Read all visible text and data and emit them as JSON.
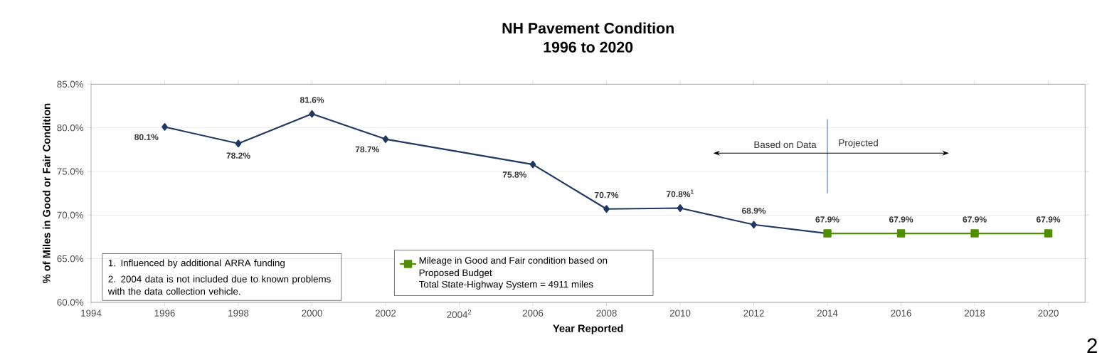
{
  "chart_data": {
    "type": "line",
    "title": "NH Pavement Condition\n1996 to 2020",
    "xlabel": "Year Reported",
    "ylabel": "% of Miles in Good or Fair Condition",
    "xlim": [
      1994,
      2021
    ],
    "ylim": [
      60,
      85
    ],
    "xticks": [
      1994,
      1996,
      1998,
      2000,
      2002,
      {
        "value": 2004,
        "label": "2004$^{2}$"
      },
      2006,
      2008,
      2010,
      2012,
      2014,
      2016,
      2018,
      2020
    ],
    "yticks": [
      {
        "value": 60,
        "label": "60.0%"
      },
      {
        "value": 65,
        "label": "65.0%"
      },
      {
        "value": 70,
        "label": "70.0%"
      },
      {
        "value": 75,
        "label": "75.0%"
      },
      {
        "value": 80,
        "label": "80.0%"
      },
      {
        "value": 85,
        "label": "85.0%"
      }
    ],
    "grid": "y",
    "legend": "bottom",
    "series": [
      {
        "color": "#1f3864",
        "marker": "diamond",
        "x": [
          1996,
          1998,
          2000,
          2002,
          2006,
          2008,
          2010,
          2012,
          2014
        ],
        "values": [
          80.1,
          78.2,
          81.6,
          78.7,
          75.8,
          70.7,
          70.8,
          68.9,
          67.9
        ],
        "value_labels": [
          "80.1%",
          "78.2%",
          "81.6%",
          "78.7%",
          "75.8%",
          "70.7%",
          "70.8%$^{1}$",
          "68.9%",
          "67.9%"
        ]
      },
      {
        "name": "Mileage in Good and Fair condition based on Proposed Budget",
        "color": "#4e8f00",
        "marker": "square",
        "x": [
          2014,
          2016,
          2018,
          2020
        ],
        "values": [
          67.9,
          67.9,
          67.9,
          67.9
        ],
        "value_labels": [
          null,
          "67.9%",
          "67.9%",
          "67.9%"
        ]
      }
    ],
    "ref_lines": [
      {
        "axis": "x",
        "value": 2014,
        "color": "#4472c4"
      }
    ],
    "annotations": [
      "1. Influenced by additional  ARRA funding",
      "2. 2004 data is not included due to known problems with the data collection vehicle.",
      "Total State-Highway System = 4911 miles",
      "Based on Data",
      "Projected",
      "2"
    ]
  }
}
